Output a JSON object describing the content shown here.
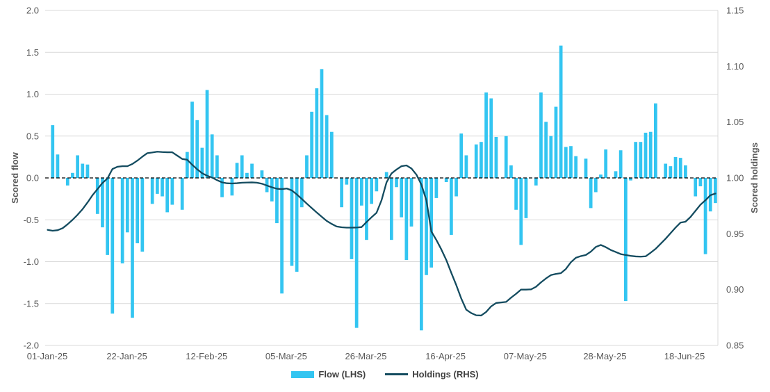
{
  "chart_data": {
    "type": "bar",
    "combo": "bar+line dual-axis daily time series",
    "x_labels": [
      "01-Jan-25",
      "22-Jan-25",
      "12-Feb-25",
      "05-Mar-25",
      "26-Mar-25",
      "16-Apr-25",
      "07-May-25",
      "28-May-25",
      "18-Jun-25"
    ],
    "left_axis": {
      "title": "Scored flow",
      "min": -2.0,
      "max": 2.0,
      "ticks": [
        "2.0",
        "1.5",
        "1.0",
        "0.5",
        "0.0",
        "-0.5",
        "-1.0",
        "-1.5",
        "-2.0"
      ],
      "zero_line": "black dashed"
    },
    "right_axis": {
      "title": "Scored holdings",
      "min": 0.85,
      "max": 1.15,
      "ticks": [
        "1.15",
        "1.10",
        "1.05",
        "1.00",
        "0.95",
        "0.90",
        "0.85"
      ]
    },
    "grid": "horizontal light gray",
    "legend_position": "bottom center",
    "series": [
      {
        "name": "Flow (LHS)",
        "type": "bar",
        "axis": "left",
        "color": "#33C5F1",
        "values": [
          0,
          0.63,
          0.28,
          0,
          -0.09,
          0.06,
          0.27,
          0.17,
          0.16,
          0,
          -0.43,
          -0.59,
          -0.92,
          -1.62,
          0,
          -1.02,
          -0.65,
          -1.67,
          -0.78,
          -0.88,
          0,
          -0.31,
          -0.19,
          -0.22,
          -0.41,
          -0.32,
          0,
          -0.38,
          0.31,
          0.91,
          0.69,
          0.36,
          1.05,
          0.52,
          0.27,
          -0.23,
          0,
          -0.21,
          0.18,
          0.27,
          0.06,
          0.17,
          0,
          0.09,
          -0.17,
          -0.28,
          -0.54,
          -1.38,
          0,
          -1.05,
          -1.12,
          -0.35,
          0.27,
          0.79,
          1.07,
          1.3,
          0.75,
          0.55,
          0,
          -0.35,
          -0.08,
          -0.97,
          -1.79,
          -0.33,
          -0.74,
          -0.31,
          -0.16,
          0,
          0.07,
          -0.74,
          -0.11,
          -0.47,
          -0.98,
          -0.58,
          0,
          -1.82,
          -1.16,
          -1.07,
          -0.24,
          0,
          -0.05,
          -0.68,
          -0.22,
          0.53,
          0.27,
          0,
          0.4,
          0.43,
          1.02,
          0.95,
          0.49,
          0,
          0.5,
          0.15,
          -0.38,
          -0.8,
          -0.48,
          0,
          -0.09,
          1.02,
          0.67,
          0.5,
          0.85,
          1.58,
          0.37,
          0.38,
          0.26,
          0,
          0.23,
          -0.36,
          -0.17,
          0.04,
          0.34,
          0,
          0.08,
          0.33,
          -1.47,
          -0.03,
          0.43,
          0.43,
          0.54,
          0.55,
          0.89,
          0,
          0.17,
          0.14,
          0.25,
          0.24,
          0.15,
          0,
          -0.22,
          -0.1,
          -0.91,
          -0.4,
          -0.3
        ]
      },
      {
        "name": "Holdings (RHS)",
        "type": "line",
        "axis": "right",
        "color": "#134B5F",
        "values": [
          0.9535,
          0.9527,
          0.9532,
          0.955,
          0.9585,
          0.9625,
          0.967,
          0.972,
          0.978,
          0.9845,
          0.99,
          0.9955,
          0.9995,
          1.008,
          1.01,
          1.0105,
          1.0105,
          1.0125,
          1.0155,
          1.019,
          1.0222,
          1.0228,
          1.0235,
          1.0232,
          1.023,
          1.023,
          1.02,
          1.017,
          1.0163,
          1.0118,
          1.0078,
          1.0042,
          1.002,
          1.0003,
          0.998,
          0.996,
          0.9952,
          0.995,
          0.9953,
          0.9957,
          0.9959,
          0.996,
          0.9957,
          0.9948,
          0.9932,
          0.9916,
          0.9903,
          0.99,
          0.9905,
          0.9888,
          0.9852,
          0.9812,
          0.977,
          0.973,
          0.969,
          0.9652,
          0.9615,
          0.9588,
          0.9565,
          0.9558,
          0.9555,
          0.9555,
          0.9556,
          0.956,
          0.9605,
          0.9648,
          0.9688,
          0.98,
          0.996,
          1.004,
          1.0075,
          1.0105,
          1.0112,
          1.0085,
          1.003,
          0.994,
          0.98,
          0.952,
          0.9445,
          0.936,
          0.9265,
          0.915,
          0.904,
          0.892,
          0.882,
          0.879,
          0.877,
          0.8768,
          0.88,
          0.885,
          0.888,
          0.8885,
          0.889,
          0.8928,
          0.8962,
          0.9,
          0.9,
          0.9002,
          0.9025,
          0.9065,
          0.91,
          0.913,
          0.914,
          0.9147,
          0.9185,
          0.9245,
          0.9285,
          0.93,
          0.931,
          0.934,
          0.9382,
          0.94,
          0.938,
          0.9355,
          0.9337,
          0.9318,
          0.931,
          0.9302,
          0.9297,
          0.9295,
          0.9298,
          0.933,
          0.9365,
          0.941,
          0.9455,
          0.9505,
          0.9555,
          0.96,
          0.9608,
          0.965,
          0.9705,
          0.976,
          0.98,
          0.9845,
          0.986
        ]
      }
    ]
  },
  "legend": {
    "flow_label": "Flow (LHS)",
    "holdings_label": "Holdings (RHS)"
  },
  "colors": {
    "bar": "#33C5F1",
    "line": "#134B5F",
    "grid": "#D9D9D9",
    "zero_line": "#000000",
    "axis_text": "#595959",
    "background": "#FFFFFF"
  }
}
